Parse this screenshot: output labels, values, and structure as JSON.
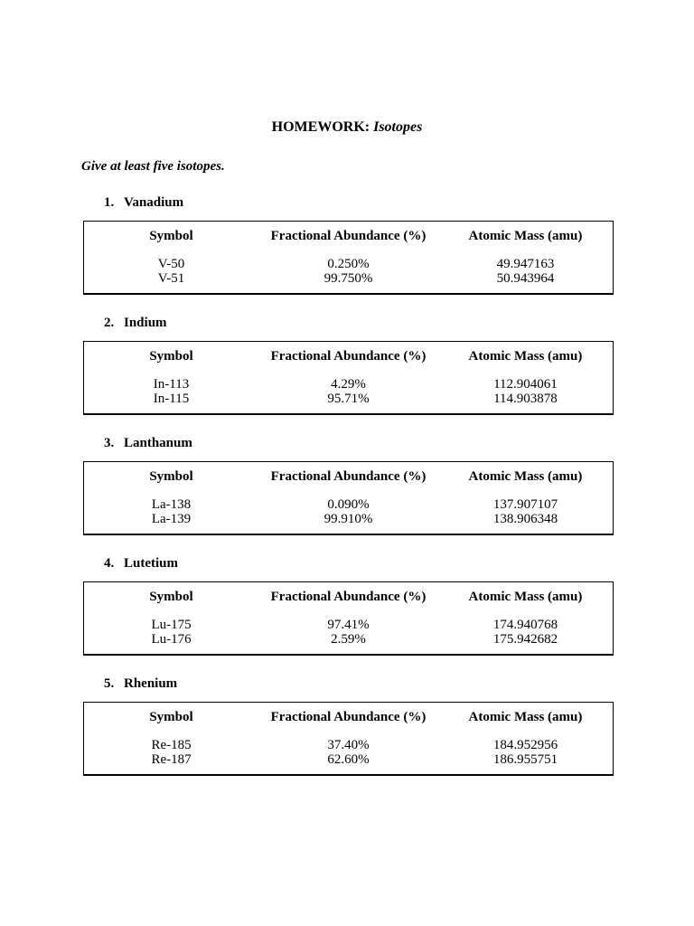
{
  "page": {
    "title_prefix": "HOMEWORK:",
    "title_emphasis": "Isotopes",
    "instruction": "Give at least five isotopes."
  },
  "table_headers": {
    "symbol": "Symbol",
    "abundance": "Fractional Abundance (%)",
    "mass": "Atomic Mass (amu)"
  },
  "colors": {
    "page_background": "#ffffff",
    "text": "#000000",
    "table_border": "#000000"
  },
  "sections": [
    {
      "number": "1.",
      "name": "Vanadium",
      "rows": [
        {
          "symbol": "V-50",
          "abundance": "0.250%",
          "mass": "49.947163"
        },
        {
          "symbol": "V-51",
          "abundance": "99.750%",
          "mass": "50.943964"
        }
      ]
    },
    {
      "number": "2.",
      "name": "Indium",
      "rows": [
        {
          "symbol": "In-113",
          "abundance": "4.29%",
          "mass": "112.904061"
        },
        {
          "symbol": "In-115",
          "abundance": "95.71%",
          "mass": "114.903878"
        }
      ]
    },
    {
      "number": "3.",
      "name": "Lanthanum",
      "rows": [
        {
          "symbol": "La-138",
          "abundance": "0.090%",
          "mass": "137.907107"
        },
        {
          "symbol": "La-139",
          "abundance": "99.910%",
          "mass": "138.906348"
        }
      ]
    },
    {
      "number": "4.",
      "name": "Lutetium",
      "rows": [
        {
          "symbol": "Lu-175",
          "abundance": "97.41%",
          "mass": "174.940768"
        },
        {
          "symbol": "Lu-176",
          "abundance": "2.59%",
          "mass": "175.942682"
        }
      ]
    },
    {
      "number": "5.",
      "name": "Rhenium",
      "rows": [
        {
          "symbol": "Re-185",
          "abundance": "37.40%",
          "mass": "184.952956"
        },
        {
          "symbol": "Re-187",
          "abundance": "62.60%",
          "mass": "186.955751"
        }
      ]
    }
  ]
}
